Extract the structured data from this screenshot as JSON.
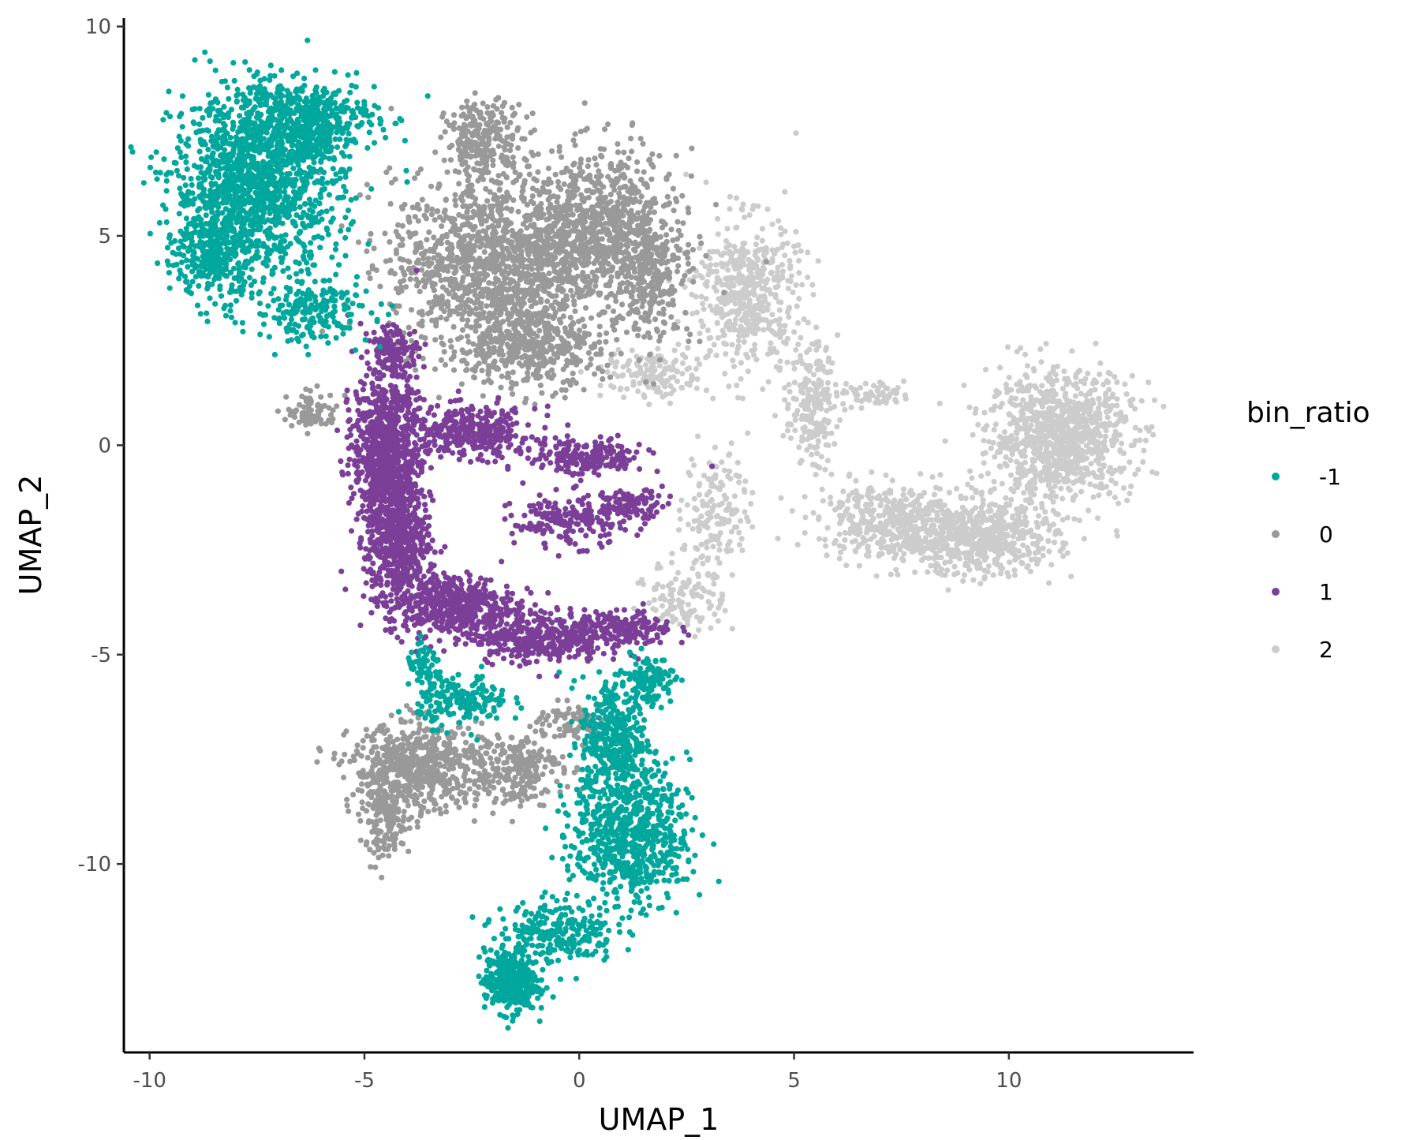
{
  "chart_data": {
    "type": "scatter",
    "title": "",
    "xlabel": "UMAP_1",
    "ylabel": "UMAP_2",
    "xlim": [
      -10.6,
      14.3
    ],
    "ylim": [
      -14.5,
      10.2
    ],
    "x_ticks": [
      -10,
      -5,
      0,
      5,
      10
    ],
    "x_tick_labels": [
      "-10",
      "-5",
      "0",
      "5",
      "10"
    ],
    "y_ticks": [
      -10,
      -5,
      0,
      5,
      10
    ],
    "y_tick_labels": [
      "-10",
      "-5",
      "0",
      "5",
      "10"
    ],
    "grid": false,
    "legend": {
      "title": "bin_ratio",
      "placement": "right",
      "entries": [
        "-1",
        "0",
        "1",
        "2"
      ]
    },
    "series": [
      {
        "name": "-1",
        "color": "#00A79D",
        "clusters": [
          {
            "cx": -7.5,
            "cy": 6.2,
            "sx": 1.3,
            "sy": 1.4,
            "n": 1300
          },
          {
            "cx": -6.5,
            "cy": 7.8,
            "sx": 1.2,
            "sy": 0.6,
            "n": 500
          },
          {
            "cx": -8.5,
            "cy": 4.6,
            "sx": 0.6,
            "sy": 0.8,
            "n": 300
          },
          {
            "cx": -6.2,
            "cy": 3.2,
            "sx": 0.9,
            "sy": 0.5,
            "n": 200
          },
          {
            "cx": 1.2,
            "cy": -9.3,
            "sx": 0.9,
            "sy": 1.1,
            "n": 700
          },
          {
            "cx": 0.8,
            "cy": -7.0,
            "sx": 0.5,
            "sy": 1.0,
            "n": 350
          },
          {
            "cx": 1.6,
            "cy": -5.6,
            "sx": 0.4,
            "sy": 0.4,
            "n": 120
          },
          {
            "cx": -1.6,
            "cy": -12.8,
            "sx": 0.4,
            "sy": 0.5,
            "n": 400
          },
          {
            "cx": -0.5,
            "cy": -11.6,
            "sx": 0.9,
            "sy": 0.5,
            "n": 250
          },
          {
            "cx": -2.7,
            "cy": -6.1,
            "sx": 0.7,
            "sy": 0.4,
            "n": 180
          },
          {
            "cx": -3.6,
            "cy": -5.3,
            "sx": 0.3,
            "sy": 0.3,
            "n": 60
          }
        ]
      },
      {
        "name": "0",
        "color": "#999999",
        "clusters": [
          {
            "cx": -2.0,
            "cy": 4.3,
            "sx": 1.6,
            "sy": 1.4,
            "n": 1300
          },
          {
            "cx": 0.5,
            "cy": 5.2,
            "sx": 1.2,
            "sy": 1.2,
            "n": 800
          },
          {
            "cx": -2.2,
            "cy": 7.3,
            "sx": 0.6,
            "sy": 0.6,
            "n": 250
          },
          {
            "cx": -1.2,
            "cy": 2.3,
            "sx": 1.1,
            "sy": 0.6,
            "n": 400
          },
          {
            "cx": 1.7,
            "cy": 4.0,
            "sx": 0.6,
            "sy": 1.0,
            "n": 250
          },
          {
            "cx": -6.2,
            "cy": 0.8,
            "sx": 0.4,
            "sy": 0.3,
            "n": 80
          },
          {
            "cx": -3.8,
            "cy": -7.7,
            "sx": 1.0,
            "sy": 0.7,
            "n": 600
          },
          {
            "cx": -4.5,
            "cy": -9.0,
            "sx": 0.4,
            "sy": 0.6,
            "n": 150
          },
          {
            "cx": -1.6,
            "cy": -7.7,
            "sx": 0.8,
            "sy": 0.6,
            "n": 250
          },
          {
            "cx": -0.2,
            "cy": -6.6,
            "sx": 0.6,
            "sy": 0.3,
            "n": 80
          }
        ]
      },
      {
        "name": "1",
        "color": "#7B3F98",
        "clusters": [
          {
            "cx": -4.5,
            "cy": 0.0,
            "sx": 0.5,
            "sy": 1.3,
            "n": 800
          },
          {
            "cx": -4.2,
            "cy": -2.2,
            "sx": 0.5,
            "sy": 1.1,
            "n": 600
          },
          {
            "cx": -3.0,
            "cy": -3.8,
            "sx": 1.0,
            "sy": 0.5,
            "n": 500
          },
          {
            "cx": -1.0,
            "cy": -4.6,
            "sx": 1.0,
            "sy": 0.4,
            "n": 350
          },
          {
            "cx": 1.0,
            "cy": -4.4,
            "sx": 0.8,
            "sy": 0.3,
            "n": 200
          },
          {
            "cx": -2.5,
            "cy": 0.3,
            "sx": 1.0,
            "sy": 0.4,
            "n": 350
          },
          {
            "cx": 0.2,
            "cy": -0.3,
            "sx": 0.9,
            "sy": 0.3,
            "n": 200
          },
          {
            "cx": -0.2,
            "cy": -1.8,
            "sx": 0.9,
            "sy": 0.4,
            "n": 200
          },
          {
            "cx": 1.3,
            "cy": -1.4,
            "sx": 0.5,
            "sy": 0.2,
            "n": 80
          },
          {
            "cx": -4.3,
            "cy": 2.3,
            "sx": 0.4,
            "sy": 0.4,
            "n": 100
          }
        ]
      },
      {
        "name": "2",
        "color": "#CCCCCC",
        "clusters": [
          {
            "cx": 11.2,
            "cy": 0.2,
            "sx": 1.1,
            "sy": 1.0,
            "n": 1000
          },
          {
            "cx": 9.3,
            "cy": -2.2,
            "sx": 1.2,
            "sy": 0.6,
            "n": 600
          },
          {
            "cx": 7.2,
            "cy": -1.8,
            "sx": 1.1,
            "sy": 0.6,
            "n": 400
          },
          {
            "cx": 3.9,
            "cy": 3.6,
            "sx": 0.8,
            "sy": 1.2,
            "n": 500
          },
          {
            "cx": 5.4,
            "cy": 1.0,
            "sx": 0.4,
            "sy": 1.0,
            "n": 200
          },
          {
            "cx": 3.2,
            "cy": -1.5,
            "sx": 0.5,
            "sy": 1.0,
            "n": 150
          },
          {
            "cx": 2.5,
            "cy": -3.6,
            "sx": 0.6,
            "sy": 0.6,
            "n": 120
          },
          {
            "cx": 1.8,
            "cy": 1.7,
            "sx": 0.8,
            "sy": 0.4,
            "n": 150
          },
          {
            "cx": 6.8,
            "cy": 1.2,
            "sx": 0.7,
            "sy": 0.2,
            "n": 60
          }
        ]
      }
    ]
  }
}
